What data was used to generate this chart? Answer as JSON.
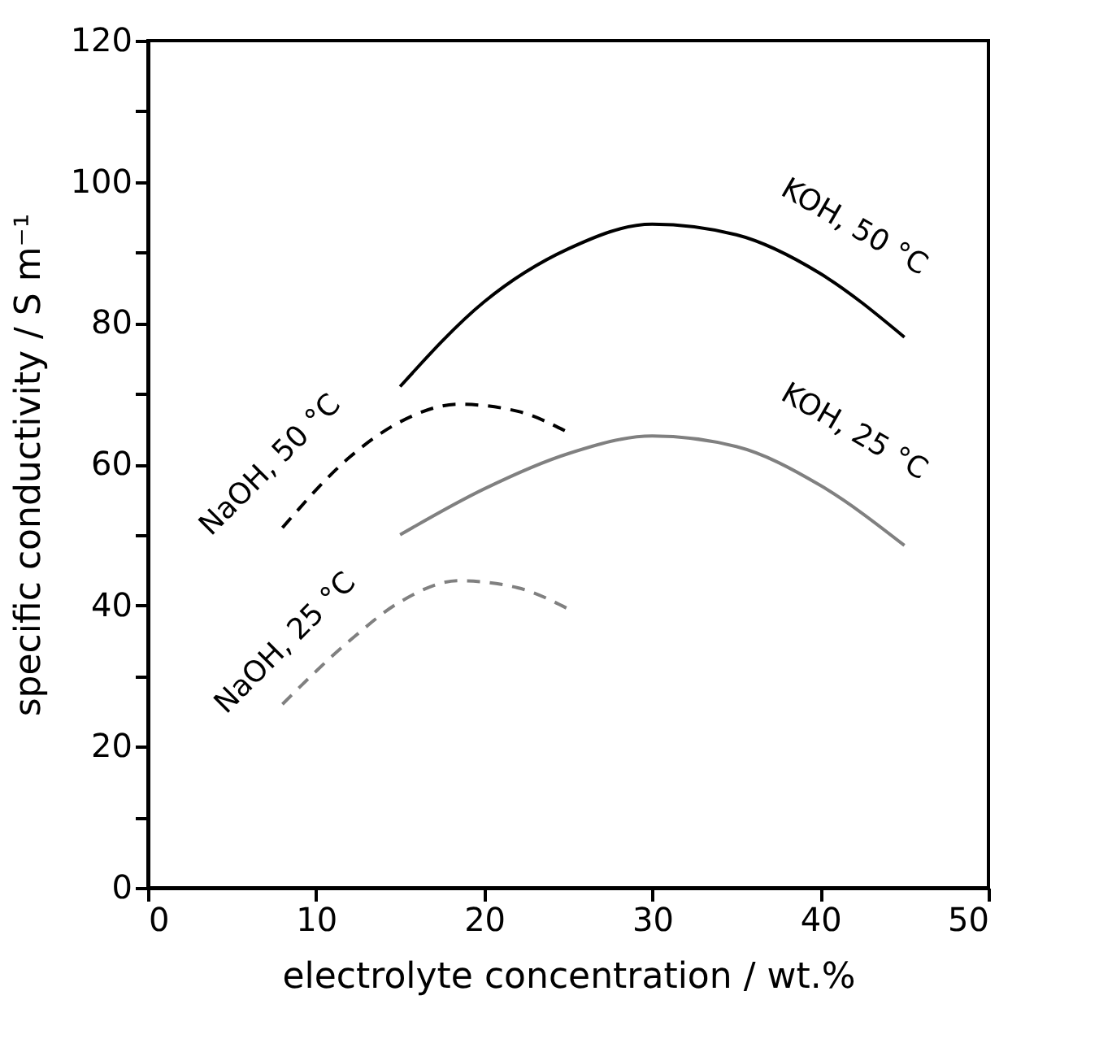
{
  "chart_data": {
    "type": "line",
    "xlabel": "electrolyte concentration / wt.%",
    "ylabel": "specific conductivity / S m⁻¹",
    "xlim": [
      0,
      50
    ],
    "xticks": [
      0,
      10,
      20,
      30,
      40,
      50
    ],
    "ylim": [
      0,
      120
    ],
    "yticks": [
      0,
      {
        "value": 10,
        "label": null
      },
      20,
      {
        "value": 30,
        "label": null
      },
      40,
      {
        "value": 50,
        "label": null
      },
      60,
      {
        "value": 70,
        "label": null
      },
      80,
      {
        "value": 90,
        "label": null
      },
      100,
      {
        "value": 110,
        "label": null
      },
      120
    ],
    "grid": false,
    "legend": false,
    "marker": "none",
    "series": [
      {
        "name": "KOH, 50 °C",
        "color": "#000000",
        "line_style": "solid",
        "x": [
          15,
          20,
          25,
          30,
          35,
          40,
          45
        ],
        "values": [
          71,
          83,
          90.5,
          94,
          92.5,
          87,
          78
        ]
      },
      {
        "name": "NaOH, 50 °C",
        "color": "#000000",
        "line_style": "dashed",
        "x": [
          8,
          12,
          15,
          18.5,
          22,
          25
        ],
        "values": [
          51,
          61,
          66,
          68.5,
          67.5,
          64.5
        ]
      },
      {
        "name": "KOH, 25 °C",
        "color": "#808080",
        "line_style": "solid",
        "x": [
          15,
          20,
          25,
          30,
          35,
          40,
          45
        ],
        "values": [
          50,
          56.5,
          61.5,
          64,
          62.5,
          57,
          48.5
        ]
      },
      {
        "name": "NaOH, 25 °C",
        "color": "#808080",
        "line_style": "dashed",
        "x": [
          8,
          12,
          15,
          18.5,
          22,
          25
        ],
        "values": [
          26,
          35,
          40.5,
          43.5,
          42.5,
          39.5
        ]
      }
    ]
  }
}
